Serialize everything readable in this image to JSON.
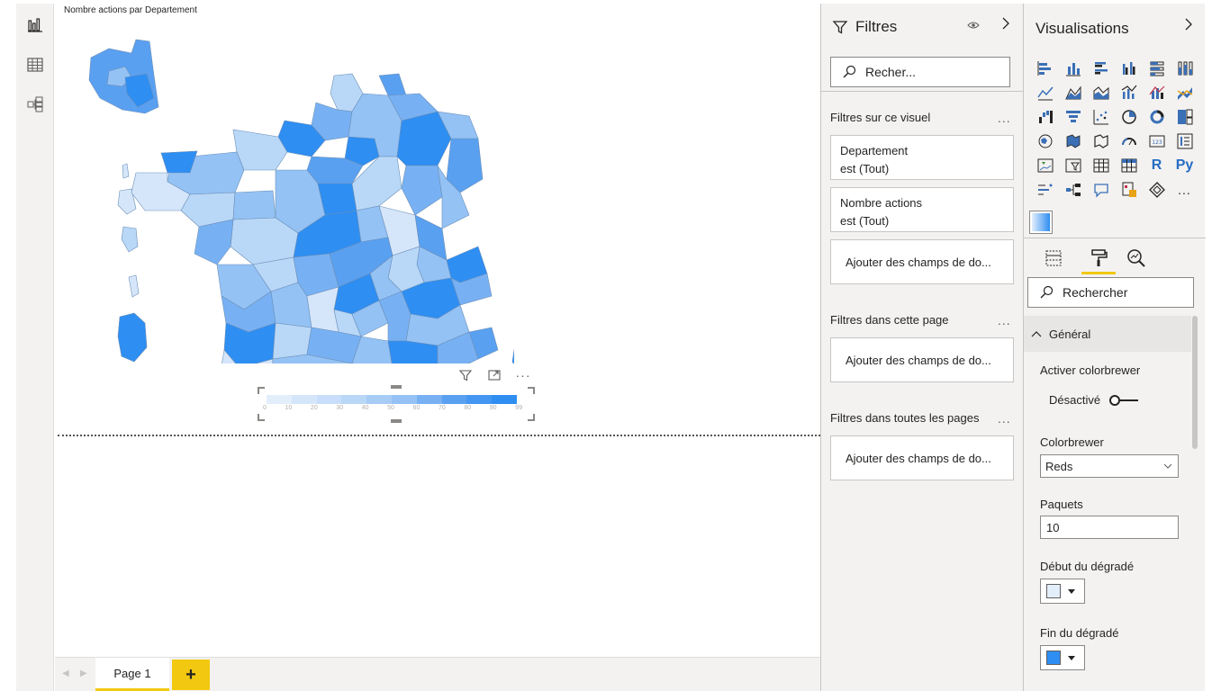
{
  "left_rail": {
    "items": [
      {
        "name": "report-view",
        "icon": "bar-chart-icon"
      },
      {
        "name": "data-view",
        "icon": "table-icon"
      },
      {
        "name": "model-view",
        "icon": "model-icon"
      }
    ]
  },
  "canvas": {
    "visual_title": "Nombre actions par Departement",
    "legend_ticks": [
      "0",
      "10",
      "20",
      "30",
      "40",
      "50",
      "60",
      "70",
      "80",
      "90",
      "99"
    ],
    "colors": {
      "start": "#e3eefb",
      "end": "#2e8ef2"
    }
  },
  "pages": {
    "tab_label": "Page 1",
    "add_label": "+"
  },
  "filters": {
    "title": "Filtres",
    "search_placeholder": "Recher...",
    "sections": {
      "visual": "Filtres sur ce visuel",
      "page": "Filtres dans cette page",
      "all": "Filtres dans toutes les pages"
    },
    "more_label": "...",
    "cards": [
      {
        "field": "Departement",
        "condition": "est (Tout)"
      },
      {
        "field": "Nombre actions",
        "condition": "est (Tout)"
      }
    ],
    "drop_label": "Ajouter des champs de do..."
  },
  "visualizations": {
    "title": "Visualisations",
    "r_label": "R",
    "py_label": "Py",
    "more_label": "...",
    "search_placeholder": "Rechercher",
    "format": {
      "section": "Général",
      "colorbrewer_label": "Activer colorbrewer",
      "toggle_state": "Désactivé",
      "colorbrewer_field": "Colorbrewer",
      "colorbrewer_value": "Reds",
      "buckets_label": "Paquets",
      "buckets_value": "10",
      "gradient_start_label": "Début du dégradé",
      "gradient_end_label": "Fin du dégradé"
    }
  }
}
